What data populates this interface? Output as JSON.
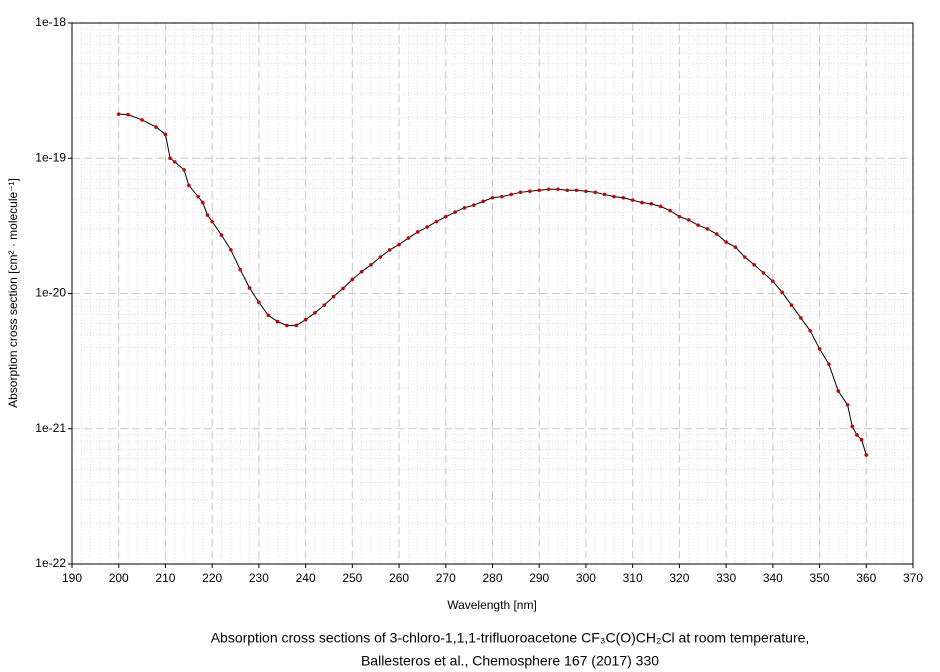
{
  "chart_data": {
    "type": "line",
    "xlabel": "Wavelength [nm]",
    "ylabel": "Absorption cross section [cm² · molecule⁻¹]",
    "caption": [
      "Absorption cross sections of 3-chloro-1,1,1-trifluoroacetone CF₃C(O)CH₂Cl at room temperature,",
      "Ballesteros et al., Chemosphere 167 (2017) 330"
    ],
    "x": [
      200,
      202,
      205,
      208,
      210,
      211,
      212,
      214,
      215,
      217,
      218,
      219,
      220,
      222,
      224,
      226,
      228,
      230,
      232,
      234,
      236,
      238,
      240,
      242,
      244,
      246,
      248,
      250,
      252,
      254,
      256,
      258,
      260,
      262,
      264,
      266,
      268,
      270,
      272,
      274,
      276,
      278,
      280,
      282,
      284,
      286,
      288,
      290,
      292,
      294,
      296,
      298,
      300,
      302,
      304,
      306,
      308,
      310,
      312,
      314,
      316,
      318,
      320,
      322,
      324,
      326,
      328,
      330,
      332,
      334,
      336,
      338,
      340,
      342,
      344,
      346,
      348,
      350,
      352,
      354,
      356,
      357,
      358,
      359,
      360
    ],
    "series": [
      {
        "name": "CF3C(O)CH2Cl",
        "color": "#cc0000",
        "line_color": "#000000",
        "values": [
          2.12e-19,
          2.1e-19,
          1.92e-19,
          1.7e-19,
          1.5e-19,
          1e-19,
          9.4e-20,
          8.2e-20,
          6.3e-20,
          5.2e-20,
          4.7e-20,
          3.8e-20,
          3.4e-20,
          2.7e-20,
          2.1e-20,
          1.5e-20,
          1.1e-20,
          8.6e-21,
          6.9e-21,
          6.2e-21,
          5.8e-21,
          5.8e-21,
          6.4e-21,
          7.2e-21,
          8.2e-21,
          9.5e-21,
          1.09e-20,
          1.27e-20,
          1.45e-20,
          1.63e-20,
          1.86e-20,
          2.1e-20,
          2.3e-20,
          2.57e-20,
          2.85e-20,
          3.1e-20,
          3.4e-20,
          3.7e-20,
          4e-20,
          4.3e-20,
          4.5e-20,
          4.8e-20,
          5.1e-20,
          5.2e-20,
          5.4e-20,
          5.6e-20,
          5.7e-20,
          5.8e-20,
          5.9e-20,
          5.9e-20,
          5.8e-20,
          5.8e-20,
          5.7e-20,
          5.6e-20,
          5.4e-20,
          5.2e-20,
          5.1e-20,
          4.9e-20,
          4.7e-20,
          4.6e-20,
          4.4e-20,
          4.1e-20,
          3.7e-20,
          3.5e-20,
          3.2e-20,
          3e-20,
          2.75e-20,
          2.4e-20,
          2.2e-20,
          1.86e-20,
          1.63e-20,
          1.42e-20,
          1.23e-20,
          1.02e-20,
          8.2e-21,
          6.6e-21,
          5.3e-21,
          3.9e-21,
          3e-21,
          1.9e-21,
          1.5e-21,
          1.04e-21,
          9e-22,
          8.3e-22,
          6.4e-22
        ]
      }
    ],
    "xlim": [
      190,
      370
    ],
    "xticks": [
      190,
      200,
      210,
      220,
      230,
      240,
      250,
      260,
      270,
      280,
      290,
      300,
      310,
      320,
      330,
      340,
      350,
      360,
      370
    ],
    "ylim": [
      1e-22,
      1e-18
    ],
    "yticks": [
      1e-22,
      1e-21,
      1e-20,
      1e-19,
      1e-18
    ],
    "ylog": true,
    "grid": true,
    "minor_grid": true
  }
}
